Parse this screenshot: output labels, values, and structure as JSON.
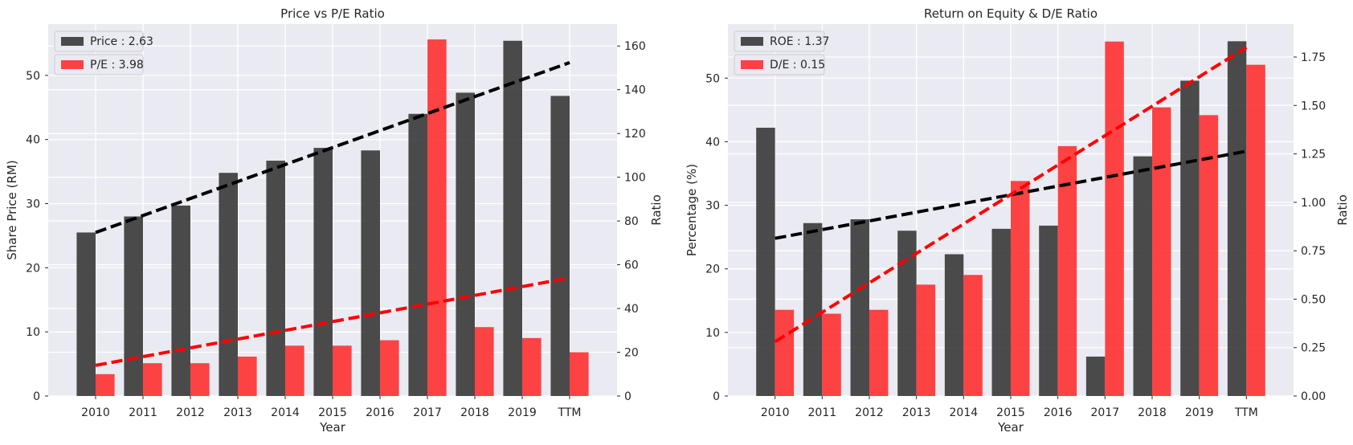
{
  "charts": [
    {
      "type": "bar",
      "title": "Price vs P/E Ratio",
      "xlabel": "Year",
      "ylabel_left": "Share Price (RM)",
      "ylabel_right": "Ratio",
      "categories": [
        "2010",
        "2011",
        "2012",
        "2013",
        "2014",
        "2015",
        "2016",
        "2017",
        "2018",
        "2019",
        "TTM"
      ],
      "ylim_left": [
        0,
        58
      ],
      "ylim_right": [
        0,
        170
      ],
      "yticks_left": [
        0,
        10,
        20,
        30,
        40,
        50
      ],
      "yticks_right": [
        0,
        20,
        40,
        60,
        80,
        100,
        120,
        140,
        160
      ],
      "yticks_right_labels": [
        "0",
        "20",
        "40",
        "60",
        "80",
        "100",
        "120",
        "140",
        "160"
      ],
      "grid": true,
      "legend_position": "top-left",
      "series": [
        {
          "name": "Price : 2.63",
          "axis": "left",
          "color": "#333333",
          "values": [
            25.5,
            28.0,
            29.7,
            34.8,
            36.7,
            38.7,
            38.3,
            44.0,
            47.3,
            55.4,
            46.8
          ],
          "trend": {
            "color": "#000000",
            "start": 25.5,
            "end": 52.0
          }
        },
        {
          "name": "P/E : 3.98",
          "axis": "right",
          "color": "#ff2a2a",
          "values": [
            10,
            15,
            15,
            18,
            23,
            23,
            25.5,
            163,
            31.5,
            26.5,
            20
          ],
          "trend": {
            "color": "#ff0000",
            "start": 14,
            "end": 54
          }
        }
      ]
    },
    {
      "type": "bar",
      "title": "Return on Equity & D/E Ratio",
      "xlabel": "Year",
      "ylabel_left": "Percentage (%)",
      "ylabel_right": "Ratio",
      "categories": [
        "2010",
        "2011",
        "2012",
        "2013",
        "2014",
        "2015",
        "2016",
        "2017",
        "2018",
        "2019",
        "TTM"
      ],
      "ylim_left": [
        0,
        58.5
      ],
      "ylim_right": [
        0,
        1.92
      ],
      "yticks_left": [
        0,
        10,
        20,
        30,
        40,
        50
      ],
      "yticks_right": [
        0,
        0.25,
        0.5,
        0.75,
        1.0,
        1.25,
        1.5,
        1.75
      ],
      "yticks_right_labels": [
        "0.00",
        "0.25",
        "0.50",
        "0.75",
        "1.00",
        "1.25",
        "1.50",
        "1.75"
      ],
      "grid": true,
      "legend_position": "top-left",
      "series": [
        {
          "name": "ROE : 1.37",
          "axis": "left",
          "color": "#333333",
          "values": [
            42.2,
            27.2,
            27.8,
            26.0,
            22.3,
            26.3,
            26.8,
            6.2,
            37.7,
            49.6,
            55.8
          ],
          "trend": {
            "color": "#000000",
            "start": 24.8,
            "end": 38.5
          }
        },
        {
          "name": "D/E : 0.15",
          "axis": "right",
          "color": "#ff2a2a",
          "values": [
            0.445,
            0.425,
            0.445,
            0.575,
            0.625,
            1.11,
            1.29,
            1.83,
            1.49,
            1.45,
            1.71
          ],
          "trend": {
            "color": "#ff0000",
            "start": 0.28,
            "end": 1.8
          }
        }
      ]
    }
  ]
}
